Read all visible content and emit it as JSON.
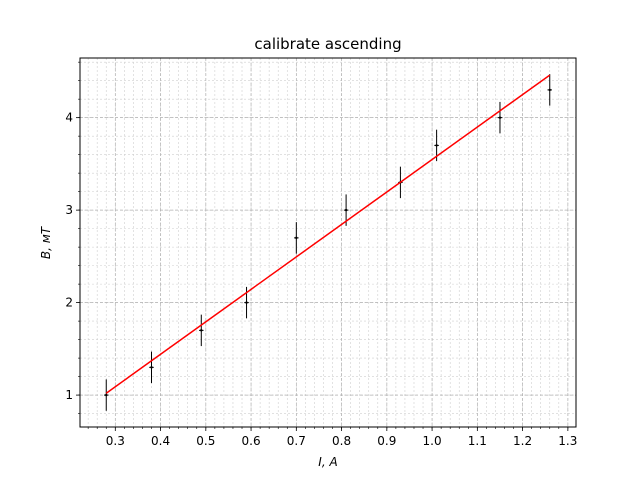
{
  "chart_data": {
    "type": "scatter",
    "title": "calibrate ascending",
    "xlabel": "I, A",
    "ylabel": "B, мТ",
    "xlim": [
      0.222,
      1.318
    ],
    "ylim": [
      0.655,
      4.645
    ],
    "xticks": [
      0.3,
      0.4,
      0.5,
      0.6,
      0.7,
      0.8,
      0.9,
      1.0,
      1.1,
      1.2,
      1.3
    ],
    "xtick_labels": [
      "0.3",
      "0.4",
      "0.5",
      "0.6",
      "0.7",
      "0.8",
      "0.9",
      "1.0",
      "1.1",
      "1.2",
      "1.3"
    ],
    "yticks": [
      1,
      2,
      3,
      4
    ],
    "ytick_labels": [
      "1",
      "2",
      "3",
      "4"
    ],
    "grid": "major and minor, dashed",
    "series": [
      {
        "kind": "errorbar",
        "color": "#000000",
        "x": [
          0.28,
          0.38,
          0.49,
          0.59,
          0.7,
          0.81,
          0.93,
          1.01,
          1.15,
          1.26
        ],
        "y": [
          1.0,
          1.3,
          1.7,
          2.0,
          2.7,
          3.0,
          3.3,
          3.7,
          4.0,
          4.3
        ],
        "yerr": [
          0.17,
          0.17,
          0.17,
          0.17,
          0.17,
          0.17,
          0.17,
          0.17,
          0.17,
          0.17
        ],
        "xerr": [
          0.005,
          0.005,
          0.005,
          0.005,
          0.005,
          0.005,
          0.005,
          0.005,
          0.005,
          0.005
        ]
      },
      {
        "kind": "line",
        "color": "#ff0000",
        "x": [
          0.28,
          1.26
        ],
        "y": [
          1.02,
          4.46
        ]
      }
    ]
  }
}
